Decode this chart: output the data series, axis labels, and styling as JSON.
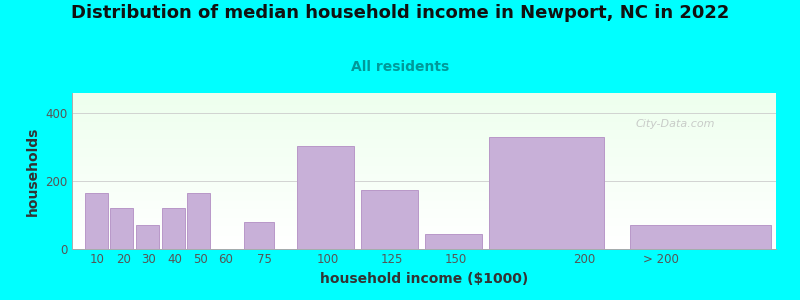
{
  "title": "Distribution of median household income in Newport, NC in 2022",
  "subtitle": "All residents",
  "xlabel": "household income ($1000)",
  "ylabel": "households",
  "background_color": "#00FFFF",
  "bar_color": "#c8b0d8",
  "bar_edge_color": "#b898c8",
  "watermark": "City-Data.com",
  "values": [
    165,
    120,
    70,
    120,
    165,
    80,
    305,
    175,
    45,
    330,
    70
  ],
  "bar_lefts": [
    5,
    15,
    25,
    35,
    45,
    67,
    88,
    113,
    138,
    163,
    218
  ],
  "bar_widths": [
    9,
    9,
    9,
    9,
    9,
    12,
    22,
    22,
    22,
    45,
    55
  ],
  "tick_positions": [
    10,
    20,
    30,
    40,
    50,
    60,
    75,
    100,
    125,
    150,
    200,
    230
  ],
  "tick_labels": [
    "10",
    "20",
    "30",
    "40",
    "50",
    "60",
    "75",
    "100",
    "125",
    "150",
    "200",
    "> 200"
  ],
  "xlim": [
    0,
    275
  ],
  "ylim": [
    0,
    460
  ],
  "yticks": [
    0,
    200,
    400
  ],
  "title_fontsize": 13,
  "subtitle_fontsize": 10,
  "axis_label_fontsize": 10,
  "tick_fontsize": 8.5,
  "title_color": "#111111",
  "subtitle_color": "#009999",
  "axis_label_color": "#333333",
  "tick_label_color": "#555555",
  "watermark_color": "#bbbbbb"
}
